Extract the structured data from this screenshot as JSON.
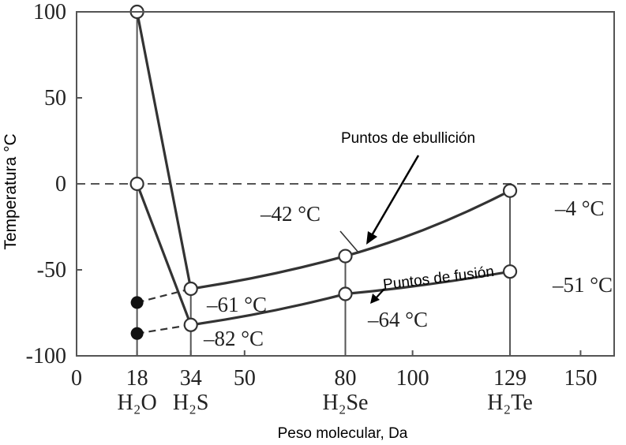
{
  "chart_data": {
    "type": "line",
    "xlabel": "Peso molecular, Da",
    "ylabel": "Temperatura °C",
    "xlim": [
      0,
      160
    ],
    "ylim": [
      -100,
      100
    ],
    "x_ticks": [
      "0",
      "18",
      "34",
      "50",
      "80",
      "100",
      "129",
      "150"
    ],
    "x_tick_values": [
      0,
      18,
      34,
      50,
      80,
      100,
      129,
      150
    ],
    "x_categories": [
      "H₂O",
      "H₂S",
      "H₂Se",
      "H₂Te"
    ],
    "x_category_values": [
      18,
      34,
      80,
      129
    ],
    "y_ticks": [
      "100",
      "50",
      "0",
      "-50",
      "-100"
    ],
    "y_tick_values": [
      100,
      50,
      0,
      -50,
      -100
    ],
    "zero_line": "dashed",
    "series": [
      {
        "name": "Puntos de ebullición",
        "x": [
          18,
          34,
          80,
          129
        ],
        "y": [
          100,
          -61,
          -42,
          -4
        ],
        "labels": [
          "",
          "–61 °C",
          "–42 °C",
          "–4 °C"
        ]
      },
      {
        "name": "Puntos de fusión",
        "x": [
          18,
          34,
          80,
          129
        ],
        "y": [
          0,
          -82,
          -64,
          -51
        ],
        "labels": [
          "",
          "–82 °C",
          "–64 °C",
          "–51 °C"
        ]
      }
    ],
    "extrapolated": [
      {
        "x": [
          18,
          34
        ],
        "y": [
          -69,
          -61
        ]
      },
      {
        "x": [
          18,
          34
        ],
        "y": [
          -87,
          -82
        ]
      }
    ],
    "colors": {
      "line": "#333333",
      "axis": "#555555",
      "background": "#ffffff"
    }
  }
}
